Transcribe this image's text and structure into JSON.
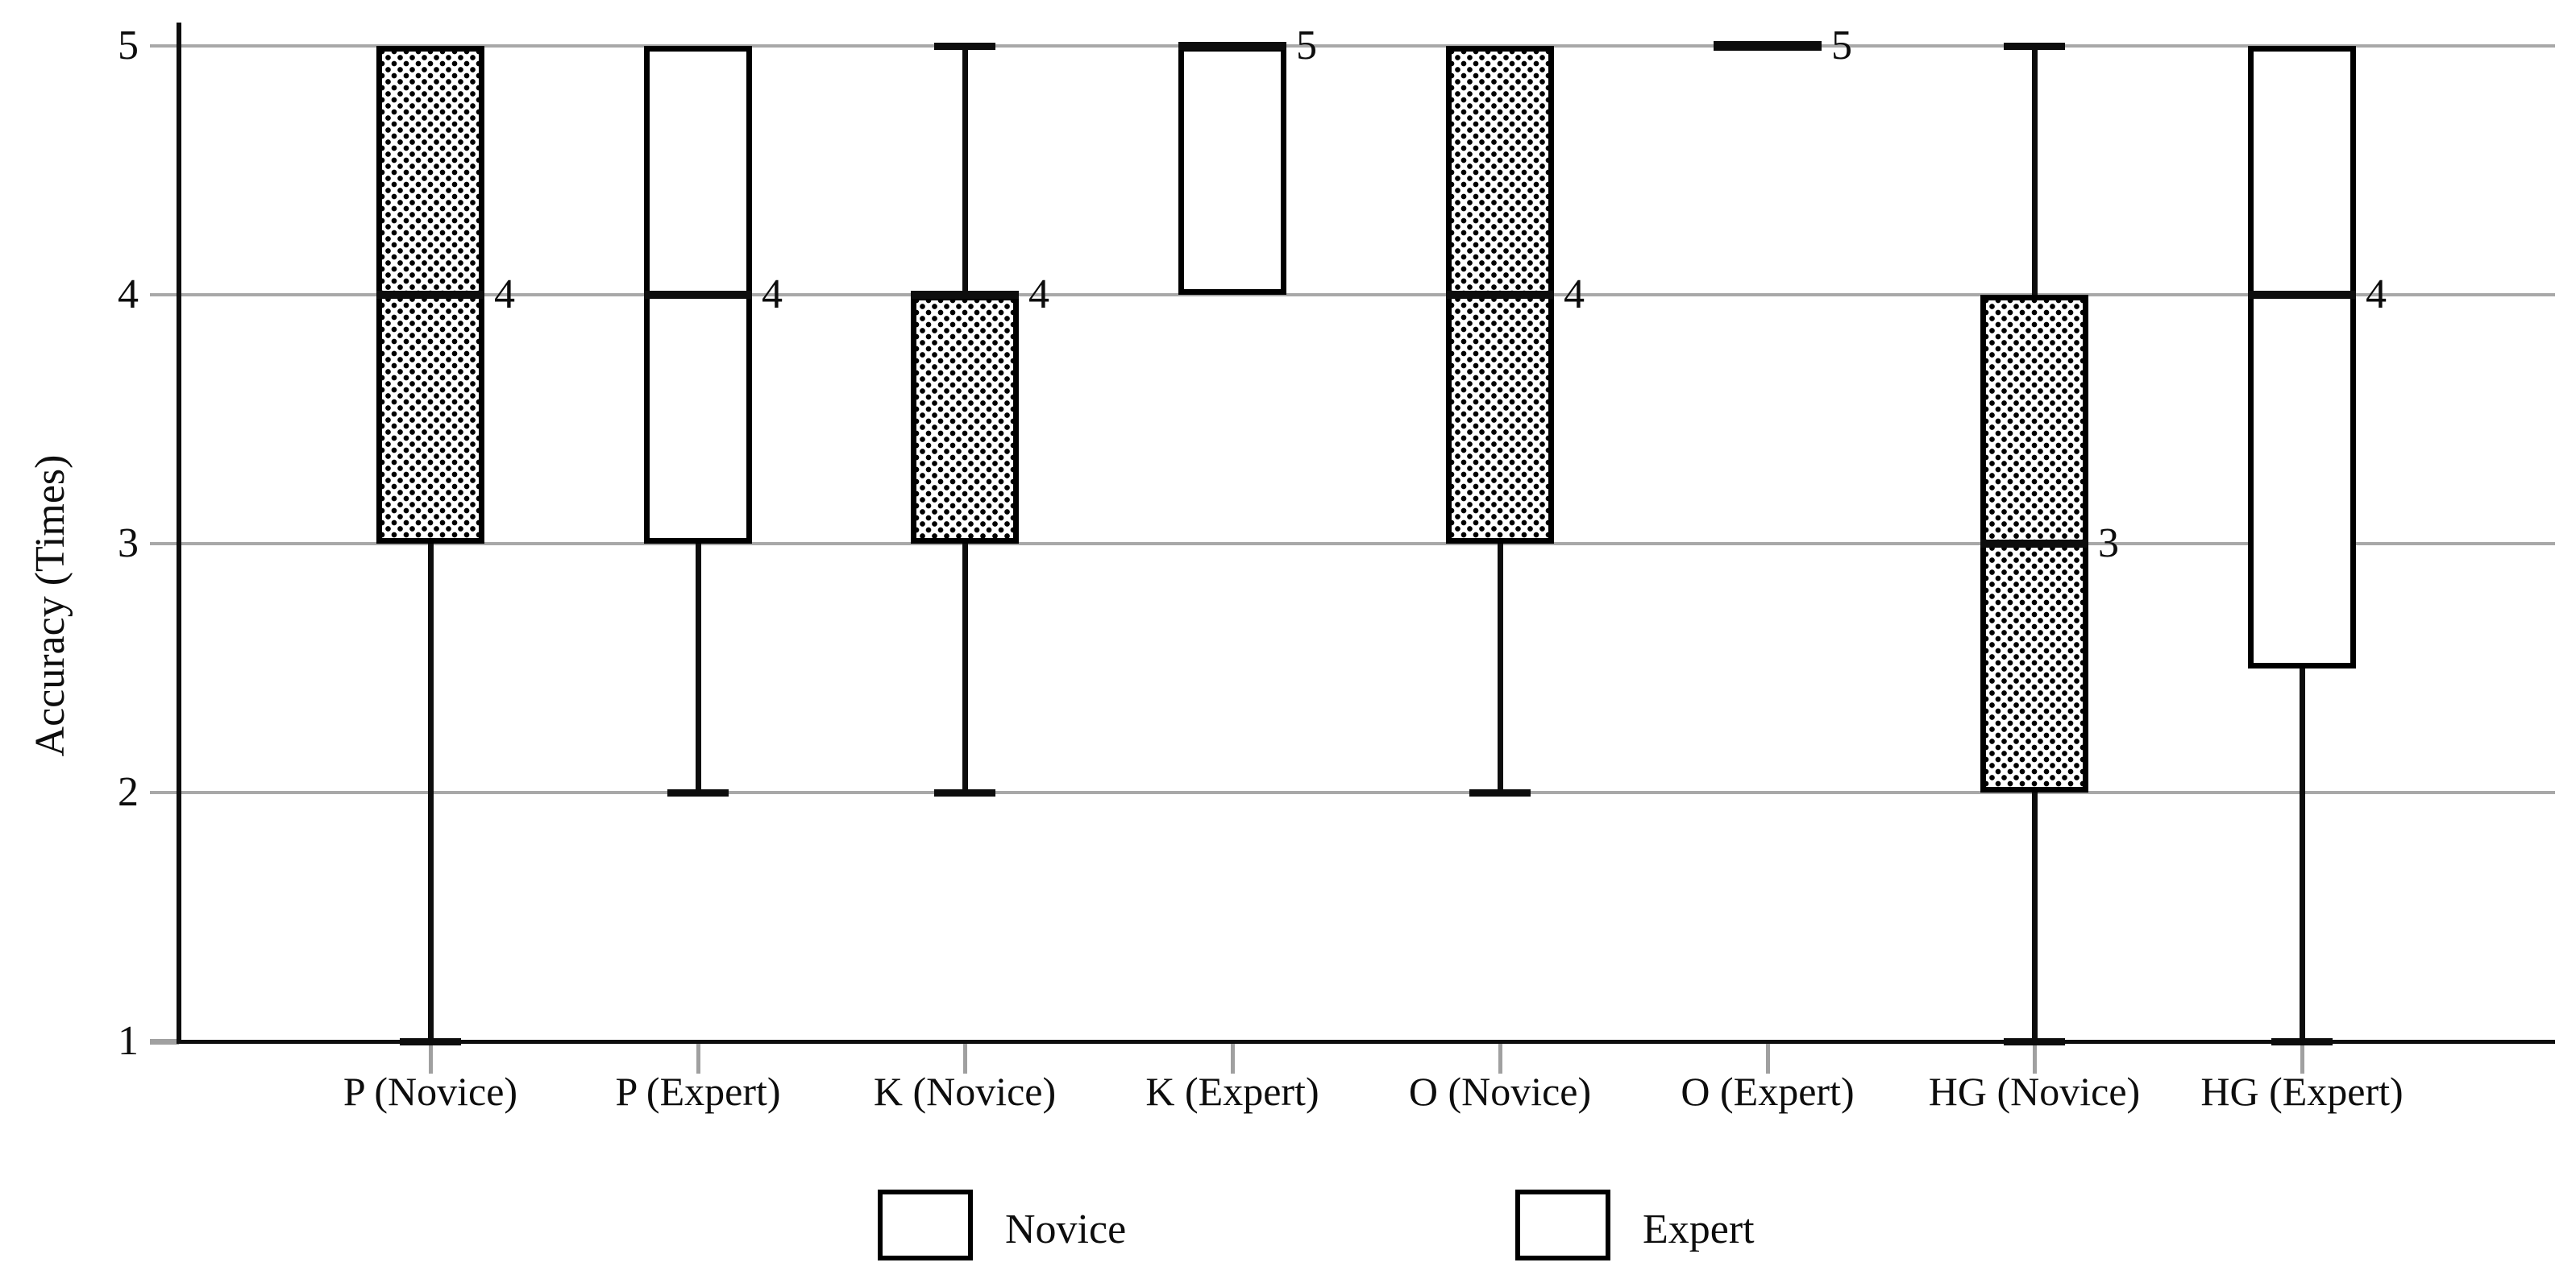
{
  "chart_data": {
    "type": "boxplot",
    "title": "",
    "ylabel": "Accuracy (Times)",
    "xlabel": "",
    "ylim": [
      1,
      5
    ],
    "yticks": [
      "1",
      "2",
      "3",
      "4",
      "5"
    ],
    "grid": "horizontal-gray",
    "legend_position": "bottom",
    "categories": [
      "P (Novice)",
      "P (Expert)",
      "K (Novice)",
      "K (Expert)",
      "O (Novice)",
      "O (Expert)",
      "HG (Novice)",
      "HG (Expert)"
    ],
    "boxes": [
      {
        "category": "P (Novice)",
        "group": "Novice",
        "q1": 3,
        "median": 4,
        "q3": 5,
        "whisker_low": 1,
        "whisker_high": 5,
        "median_label": "4"
      },
      {
        "category": "P (Expert)",
        "group": "Expert",
        "q1": 3,
        "median": 4,
        "q3": 5,
        "whisker_low": 2,
        "whisker_high": 5,
        "median_label": "4"
      },
      {
        "category": "K (Novice)",
        "group": "Novice",
        "q1": 3,
        "median": 4,
        "q3": 4,
        "whisker_low": 2,
        "whisker_high": 5,
        "median_label": "4"
      },
      {
        "category": "K (Expert)",
        "group": "Expert",
        "q1": 4,
        "median": 5,
        "q3": 5,
        "whisker_low": 4,
        "whisker_high": 5,
        "median_label": "5"
      },
      {
        "category": "O (Novice)",
        "group": "Novice",
        "q1": 3,
        "median": 4,
        "q3": 5,
        "whisker_low": 2,
        "whisker_high": 5,
        "median_label": "4"
      },
      {
        "category": "O (Expert)",
        "group": "Expert",
        "q1": 5,
        "median": 5,
        "q3": 5,
        "whisker_low": 5,
        "whisker_high": 5,
        "median_label": "5"
      },
      {
        "category": "HG (Novice)",
        "group": "Novice",
        "q1": 2,
        "median": 3,
        "q3": 4,
        "whisker_low": 1,
        "whisker_high": 5,
        "median_label": "3"
      },
      {
        "category": "HG (Expert)",
        "group": "Expert",
        "q1": 2.5,
        "median": 4,
        "q3": 5,
        "whisker_low": 1,
        "whisker_high": 5,
        "median_label": "4"
      }
    ],
    "legend": [
      {
        "label": "Novice",
        "pattern": "dotted"
      },
      {
        "label": "Expert",
        "pattern": "plain"
      }
    ],
    "colors": {
      "stroke": "#000000",
      "grid": "#a8a8a8",
      "fill": "#ffffff"
    }
  }
}
